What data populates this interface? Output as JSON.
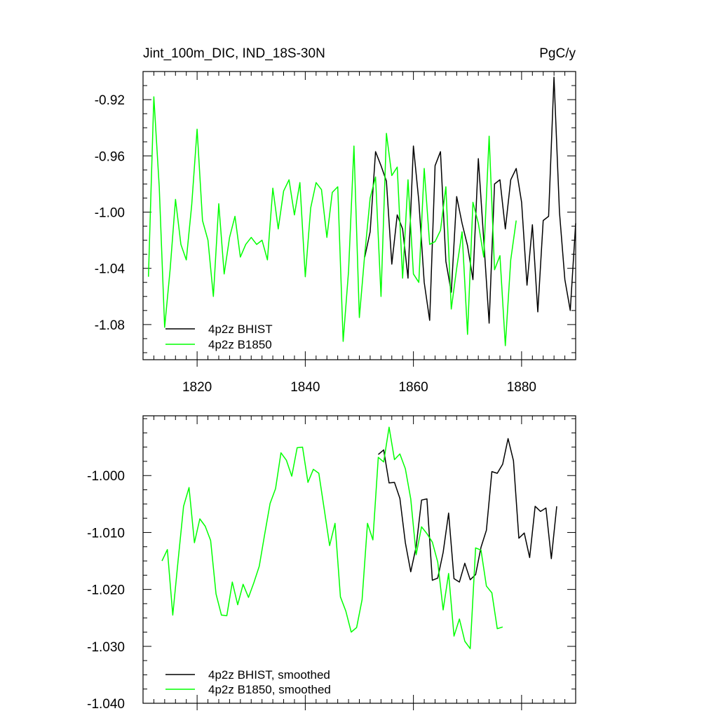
{
  "chart_data": [
    {
      "type": "line",
      "title_left": "Jint_100m_DIC, IND_18S-30N",
      "title_right": "PgC/y",
      "xlim": [
        1810,
        1890
      ],
      "ylim": [
        -1.105,
        -0.9
      ],
      "xticks": [
        1820,
        1840,
        1860,
        1880
      ],
      "xtick_labels": [
        "1820",
        "1840",
        "1860",
        "1880"
      ],
      "yticks": [
        -0.92,
        -0.96,
        -1.0,
        -1.04,
        -1.08
      ],
      "ytick_labels": [
        "-0.92",
        "-0.96",
        "-1.00",
        "-1.04",
        "-1.08"
      ],
      "legend_position": "bottom-left",
      "series": [
        {
          "name": "4p2z BHIST",
          "color": "#000000",
          "x_start": 1851,
          "values": [
            -1.032,
            -1.014,
            -0.957,
            -0.967,
            -0.978,
            -1.037,
            -1.002,
            -1.012,
            -1.047,
            -0.953,
            -0.992,
            -1.05,
            -1.077,
            -0.967,
            -0.957,
            -1.035,
            -1.057,
            -0.989,
            -1.008,
            -1.024,
            -1.048,
            -0.962,
            -1.02,
            -1.079,
            -0.98,
            -0.977,
            -1.012,
            -0.977,
            -0.969,
            -0.993,
            -1.052,
            -1.009,
            -1.071,
            -1.006,
            -1.003,
            -0.904,
            -1.0,
            -1.048,
            -1.07,
            -1.008
          ]
        },
        {
          "name": "4p2z B1850",
          "color": "#00ff00",
          "x_start": 1811,
          "values": [
            -1.046,
            -0.918,
            -0.982,
            -1.082,
            -1.041,
            -0.991,
            -1.023,
            -1.034,
            -0.995,
            -0.941,
            -1.006,
            -1.02,
            -1.06,
            -0.994,
            -1.044,
            -1.018,
            -1.003,
            -1.032,
            -1.023,
            -1.018,
            -1.023,
            -1.02,
            -1.034,
            -0.983,
            -1.012,
            -0.985,
            -0.977,
            -1.002,
            -0.979,
            -1.046,
            -0.997,
            -0.979,
            -0.984,
            -1.018,
            -0.986,
            -0.982,
            -1.092,
            -1.042,
            -0.953,
            -1.075,
            -1.03,
            -0.99,
            -0.975,
            -1.06,
            -0.944,
            -0.974,
            -0.968,
            -1.047,
            -0.977,
            -1.044,
            -1.05,
            -0.969,
            -1.023,
            -1.021,
            -1.013,
            -0.982,
            -1.069,
            -1.04,
            -1.014,
            -1.087,
            -0.993,
            -1.008,
            -1.032,
            -0.946,
            -1.041,
            -1.031,
            -1.095,
            -1.034,
            -1.006
          ]
        }
      ]
    },
    {
      "type": "line",
      "xlim": [
        1810,
        1890
      ],
      "ylim": [
        -1.04,
        -0.9895
      ],
      "xticks": [
        1820,
        1840,
        1860,
        1880
      ],
      "yticks": [
        -1.0,
        -1.01,
        -1.02,
        -1.03,
        -1.04
      ],
      "ytick_labels": [
        "-1.000",
        "-1.010",
        "-1.020",
        "-1.030",
        "-1.040"
      ],
      "legend_position": "bottom-left",
      "series": [
        {
          "name": "4p2z BHIST, smoothed",
          "color": "#000000",
          "x_start": 1853.5,
          "values": [
            -0.9963,
            -0.9955,
            -1.0013,
            -1.0012,
            -1.004,
            -1.0118,
            -1.0169,
            -1.0125,
            -1.0043,
            -1.0041,
            -1.0184,
            -1.018,
            -1.0135,
            -1.0066,
            -1.0181,
            -1.0187,
            -1.0154,
            -1.0183,
            -1.0174,
            -1.0126,
            -1.0096,
            -0.9993,
            -0.9996,
            -0.998,
            -0.9935,
            -0.9974,
            -1.011,
            -1.0101,
            -1.0144,
            -1.0054,
            -1.0063,
            -1.0057,
            -1.0146,
            -1.0054
          ]
        },
        {
          "name": "4p2z B1850, smoothed",
          "color": "#00ff00",
          "x_start": 1813.5,
          "values": [
            -1.015,
            -1.013,
            -1.0245,
            -1.0148,
            -1.0054,
            -1.0021,
            -1.0118,
            -1.0076,
            -1.0089,
            -1.0114,
            -1.0208,
            -1.0245,
            -1.0246,
            -1.0187,
            -1.0227,
            -1.0191,
            -1.0214,
            -1.0188,
            -1.0159,
            -1.0103,
            -1.0049,
            -1.0023,
            -0.996,
            -0.9973,
            -1.0001,
            -0.9951,
            -0.995,
            -1.0012,
            -0.9989,
            -0.9996,
            -1.0059,
            -1.0123,
            -1.0084,
            -1.0213,
            -1.0238,
            -1.0275,
            -1.0267,
            -1.0218,
            -1.0084,
            -1.0113,
            -0.9968,
            -0.9976,
            -0.9915,
            -0.9972,
            -0.9962,
            -0.9988,
            -1.0041,
            -1.0139,
            -1.009,
            -1.0102,
            -1.0117,
            -1.0152,
            -1.0236,
            -1.0172,
            -1.0282,
            -1.0252,
            -1.0291,
            -1.0304,
            -1.0127,
            -1.0131,
            -1.0194,
            -1.0206,
            -1.0269,
            -1.0266
          ]
        }
      ]
    }
  ]
}
